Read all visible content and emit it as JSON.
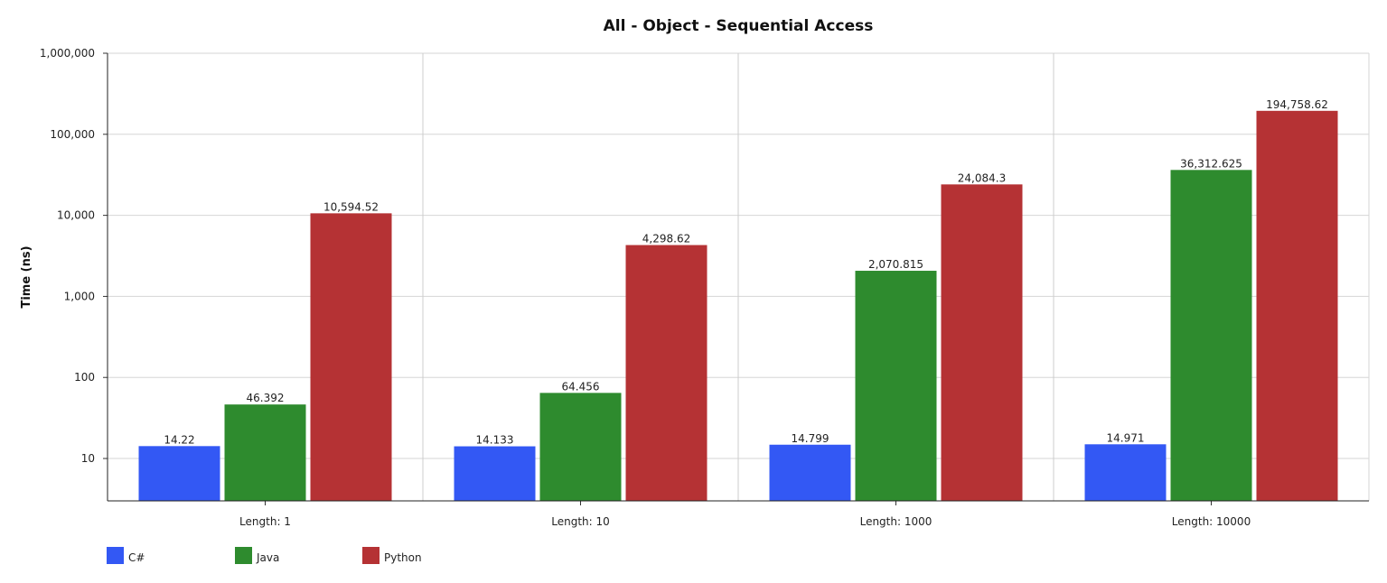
{
  "chart_data": {
    "type": "bar",
    "title": "All - Object - Sequential Access",
    "xlabel": "",
    "ylabel": "Time (ns)",
    "yscale": "log",
    "ylim": [
      3,
      1000000
    ],
    "yticks": [
      10,
      100,
      1000,
      10000,
      100000,
      1000000
    ],
    "ytick_labels": [
      "10",
      "100",
      "1,000",
      "10,000",
      "100,000",
      "1,000,000"
    ],
    "grid": true,
    "legend_position": "bottom-left",
    "categories": [
      "Length: 1",
      "Length: 10",
      "Length: 1000",
      "Length: 10000"
    ],
    "series": [
      {
        "name": "C#",
        "color": "#3358f4",
        "values": [
          14.22,
          14.133,
          14.799,
          14.971
        ],
        "labels": [
          "14.22",
          "14.133",
          "14.799",
          "14.971"
        ]
      },
      {
        "name": "Java",
        "color": "#2e8b2e",
        "values": [
          46.392,
          64.456,
          2070.815,
          36312.625
        ],
        "labels": [
          "46.392",
          "64.456",
          "2,070.815",
          "36,312.625"
        ]
      },
      {
        "name": "Python",
        "color": "#b53234",
        "values": [
          10594.52,
          4298.62,
          24084.3,
          194758.62
        ],
        "labels": [
          "10,594.52",
          "4,298.62",
          "24,084.3",
          "194,758.62"
        ]
      }
    ]
  }
}
